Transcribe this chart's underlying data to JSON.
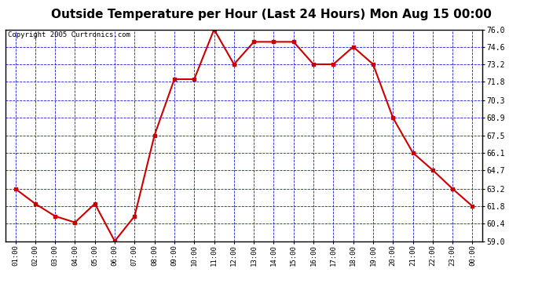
{
  "title": "Outside Temperature per Hour (Last 24 Hours) Mon Aug 15 00:00",
  "copyright": "Copyright 2005 Curtronics.com",
  "hours": [
    "01:00",
    "02:00",
    "03:00",
    "04:00",
    "05:00",
    "06:00",
    "07:00",
    "08:00",
    "09:00",
    "10:00",
    "11:00",
    "12:00",
    "13:00",
    "14:00",
    "15:00",
    "16:00",
    "17:00",
    "18:00",
    "19:00",
    "20:00",
    "21:00",
    "22:00",
    "23:00",
    "00:00"
  ],
  "values": [
    63.2,
    62.0,
    61.0,
    60.5,
    62.0,
    59.0,
    61.0,
    67.5,
    72.0,
    72.0,
    76.0,
    73.2,
    75.0,
    75.0,
    75.0,
    73.2,
    73.2,
    74.6,
    73.2,
    68.9,
    66.1,
    64.7,
    63.2,
    61.8
  ],
  "ylim": [
    59.0,
    76.0
  ],
  "yticks": [
    59.0,
    60.4,
    61.8,
    63.2,
    64.7,
    66.1,
    67.5,
    68.9,
    70.3,
    71.8,
    73.2,
    74.6,
    76.0
  ],
  "line_color": "#cc0000",
  "marker_color": "#cc0000",
  "bg_color": "#ffffff",
  "plot_bg_color": "#ffffff",
  "grid_color": "#0000cc",
  "title_fontsize": 11,
  "copyright_fontsize": 6.5
}
